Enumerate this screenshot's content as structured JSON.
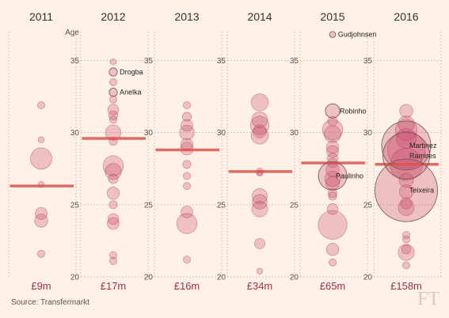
{
  "chart_data": {
    "type": "scatter",
    "subtype": "bubble-strip",
    "y_label": "Age",
    "ylim": [
      20,
      37
    ],
    "y_ticks": [
      20,
      25,
      30,
      35
    ],
    "grid": "dotted vertical column guides",
    "colors": {
      "bubble_fill": "#c9506e",
      "bubble_stroke": "#a53a56",
      "average_line": "#d9534f",
      "spend_text": "#9e2f50",
      "background": "#fff1e5",
      "grid": "#c8b8aa"
    },
    "columns": [
      {
        "year": "2011",
        "spend_label": "£9m",
        "average_age": 26.3,
        "players": [
          {
            "age": 31.9,
            "fee": 0.2
          },
          {
            "age": 29.5,
            "fee": 0.1
          },
          {
            "age": 28.2,
            "fee": 4.0
          },
          {
            "age": 26.4,
            "fee": 0.1
          },
          {
            "age": 24.4,
            "fee": 0.9
          },
          {
            "age": 23.9,
            "fee": 1.2
          },
          {
            "age": 21.6,
            "fee": 0.2
          }
        ]
      },
      {
        "year": "2012",
        "spend_label": "£17m",
        "average_age": 29.6,
        "players": [
          {
            "age": 34.9,
            "fee": 0.1
          },
          {
            "age": 34.2,
            "fee": 0.3,
            "name": "Drogba"
          },
          {
            "age": 33.5,
            "fee": 0.2
          },
          {
            "age": 32.8,
            "fee": 0.3,
            "name": "Anelka"
          },
          {
            "age": 32.3,
            "fee": 0.2
          },
          {
            "age": 31.6,
            "fee": 0.7
          },
          {
            "age": 31.2,
            "fee": 0.4
          },
          {
            "age": 30.9,
            "fee": 0.2
          },
          {
            "age": 30.0,
            "fee": 1.8
          },
          {
            "age": 29.4,
            "fee": 0.3
          },
          {
            "age": 27.7,
            "fee": 3.5
          },
          {
            "age": 27.3,
            "fee": 2.0
          },
          {
            "age": 26.8,
            "fee": 0.5
          },
          {
            "age": 25.8,
            "fee": 1.0
          },
          {
            "age": 25.0,
            "fee": 0.3
          },
          {
            "age": 24.0,
            "fee": 0.7
          },
          {
            "age": 23.7,
            "fee": 0.9
          },
          {
            "age": 21.5,
            "fee": 0.2
          },
          {
            "age": 21.1,
            "fee": 0.2
          }
        ]
      },
      {
        "year": "2013",
        "spend_label": "£16m",
        "average_age": 28.8,
        "players": [
          {
            "age": 31.9,
            "fee": 0.2
          },
          {
            "age": 31.1,
            "fee": 0.4
          },
          {
            "age": 30.5,
            "fee": 0.9
          },
          {
            "age": 30.0,
            "fee": 1.6
          },
          {
            "age": 29.2,
            "fee": 0.9
          },
          {
            "age": 28.9,
            "fee": 1.1
          },
          {
            "age": 27.8,
            "fee": 0.3
          },
          {
            "age": 27.0,
            "fee": 0.2
          },
          {
            "age": 26.3,
            "fee": 0.2
          },
          {
            "age": 24.5,
            "fee": 0.9
          },
          {
            "age": 23.7,
            "fee": 3.5
          },
          {
            "age": 21.2,
            "fee": 0.2
          }
        ]
      },
      {
        "year": "2014",
        "spend_label": "£34m",
        "average_age": 27.3,
        "players": [
          {
            "age": 32.1,
            "fee": 2.3
          },
          {
            "age": 30.9,
            "fee": 1.9
          },
          {
            "age": 30.5,
            "fee": 2.8
          },
          {
            "age": 30.1,
            "fee": 1.2
          },
          {
            "age": 29.8,
            "fee": 2.3
          },
          {
            "age": 27.3,
            "fee": 0.2
          },
          {
            "age": 27.2,
            "fee": 0.1
          },
          {
            "age": 25.6,
            "fee": 1.7
          },
          {
            "age": 25.2,
            "fee": 1.6
          },
          {
            "age": 24.7,
            "fee": 1.9
          },
          {
            "age": 22.3,
            "fee": 0.6
          },
          {
            "age": 20.4,
            "fee": 0.1
          }
        ]
      },
      {
        "year": "2015",
        "spend_label": "£65m",
        "average_age": 27.9,
        "players": [
          {
            "age": 36.8,
            "fee": 0.1,
            "name": "Gudjohnsen"
          },
          {
            "age": 31.5,
            "fee": 1.5,
            "name": "Robinho"
          },
          {
            "age": 30.8,
            "fee": 0.5
          },
          {
            "age": 30.2,
            "fee": 3.5
          },
          {
            "age": 29.9,
            "fee": 2.2
          },
          {
            "age": 29.0,
            "fee": 1.0
          },
          {
            "age": 28.7,
            "fee": 0.9
          },
          {
            "age": 28.2,
            "fee": 0.7
          },
          {
            "age": 27.9,
            "fee": 0.5
          },
          {
            "age": 27.4,
            "fee": 1.2
          },
          {
            "age": 27.0,
            "fee": 7.6,
            "name": "Paulinho"
          },
          {
            "age": 26.8,
            "fee": 1.8
          },
          {
            "age": 26.5,
            "fee": 1.3
          },
          {
            "age": 25.8,
            "fee": 0.4
          },
          {
            "age": 25.6,
            "fee": 0.3
          },
          {
            "age": 24.7,
            "fee": 0.7
          },
          {
            "age": 23.6,
            "fee": 7.8
          },
          {
            "age": 21.9,
            "fee": 1.0
          },
          {
            "age": 21.0,
            "fee": 0.2
          }
        ]
      },
      {
        "year": "2016",
        "spend_label": "£158m",
        "average_age": 27.8,
        "players": [
          {
            "age": 31.5,
            "fee": 1.2
          },
          {
            "age": 30.6,
            "fee": 2.0
          },
          {
            "age": 30.2,
            "fee": 4.0
          },
          {
            "age": 29.6,
            "fee": 3.3
          },
          {
            "age": 29.1,
            "fee": 25.0,
            "name": "Martinez"
          },
          {
            "age": 28.8,
            "fee": 14.0
          },
          {
            "age": 28.4,
            "fee": 22.5,
            "name": "Ramires"
          },
          {
            "age": 27.8,
            "fee": 10.0
          },
          {
            "age": 26.7,
            "fee": 1.5
          },
          {
            "age": 26.0,
            "fee": 42.0,
            "name": "Teixeira"
          },
          {
            "age": 25.9,
            "fee": 1.4
          },
          {
            "age": 25.1,
            "fee": 0.8
          },
          {
            "age": 24.8,
            "fee": 1.9
          },
          {
            "age": 22.9,
            "fee": 0.2
          },
          {
            "age": 22.6,
            "fee": 0.2
          },
          {
            "age": 21.9,
            "fee": 0.4
          },
          {
            "age": 21.7,
            "fee": 2.0
          },
          {
            "age": 20.8,
            "fee": 0.2
          }
        ]
      }
    ]
  },
  "footer": {
    "source": "Source: Transfermarkt",
    "logo": "FT"
  }
}
